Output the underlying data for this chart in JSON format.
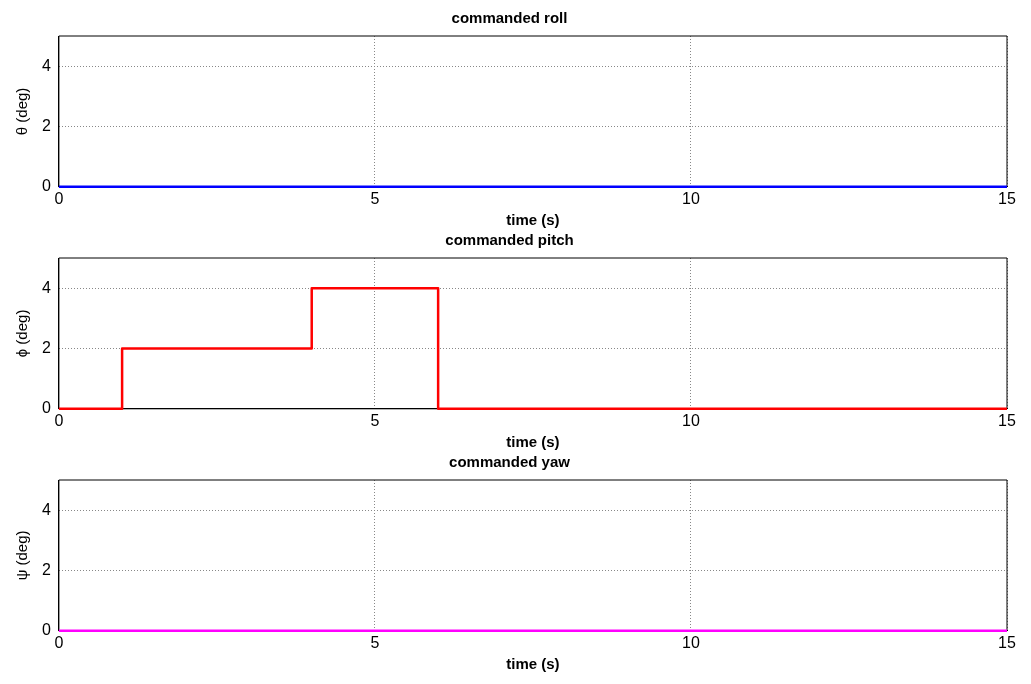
{
  "chart_data": [
    {
      "type": "line",
      "title": "commanded roll",
      "xlabel": "time (s)",
      "ylabel": "θ (deg)",
      "xlim": [
        0,
        15
      ],
      "xticks": [
        0,
        5,
        10,
        15
      ],
      "ylim": [
        0,
        5
      ],
      "yticks": [
        0,
        2,
        4
      ],
      "grid": true,
      "line_style": "solid",
      "marker": "none",
      "series": [
        {
          "color": "#0000ff",
          "x": [
            0,
            15
          ],
          "values": [
            0,
            0
          ]
        }
      ]
    },
    {
      "type": "line",
      "title": "commanded pitch",
      "xlabel": "time (s)",
      "ylabel": "ϕ (deg)",
      "xlim": [
        0,
        15
      ],
      "xticks": [
        0,
        5,
        10,
        15
      ],
      "ylim": [
        0,
        5
      ],
      "yticks": [
        0,
        2,
        4
      ],
      "grid": true,
      "line_style": "solid",
      "marker": "none",
      "series": [
        {
          "color": "#ff0000",
          "x": [
            0,
            1,
            1,
            4,
            4,
            6,
            6,
            15
          ],
          "values": [
            0,
            0,
            2,
            2,
            4,
            4,
            0,
            0
          ]
        }
      ]
    },
    {
      "type": "line",
      "title": "commanded yaw",
      "xlabel": "time (s)",
      "ylabel": "ψ (deg)",
      "xlim": [
        0,
        15
      ],
      "xticks": [
        0,
        5,
        10,
        15
      ],
      "ylim": [
        0,
        5
      ],
      "yticks": [
        0,
        2,
        4
      ],
      "grid": true,
      "line_style": "solid",
      "marker": "none",
      "series": [
        {
          "color": "#ff00ff",
          "x": [
            0,
            15
          ],
          "values": [
            0,
            0
          ]
        }
      ]
    }
  ]
}
